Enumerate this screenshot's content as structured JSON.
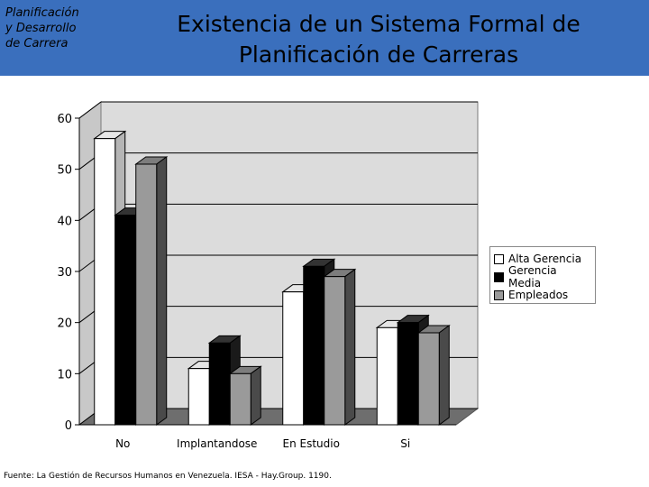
{
  "header": {
    "section_label": "Planificación\ny Desarrollo\nde Carrera",
    "title": "Existencia  de un Sistema Formal de\nPlanificación de Carreras"
  },
  "chart_data": {
    "type": "bar",
    "categories": [
      "No",
      "Implantandose",
      "En Estudio",
      "Si"
    ],
    "series": [
      {
        "name": "Alta Gerencia",
        "values": [
          56,
          11,
          26,
          19
        ],
        "color": "#ffffff"
      },
      {
        "name": "Gerencia Media",
        "values": [
          41,
          16,
          31,
          20
        ],
        "color": "#000000"
      },
      {
        "name": "Empleados",
        "values": [
          51,
          10,
          29,
          18
        ],
        "color": "#9a9a9a"
      }
    ],
    "ylim": [
      0,
      60
    ],
    "yticks": [
      "0",
      "10",
      "20",
      "30",
      "40",
      "50",
      "60"
    ],
    "grid": true,
    "legend_position": "right",
    "style": "3d-clustered-bar"
  },
  "source": "Fuente: La Gestión de Recursos Humanos en Venezuela. IESA - Hay.Group. 1190."
}
